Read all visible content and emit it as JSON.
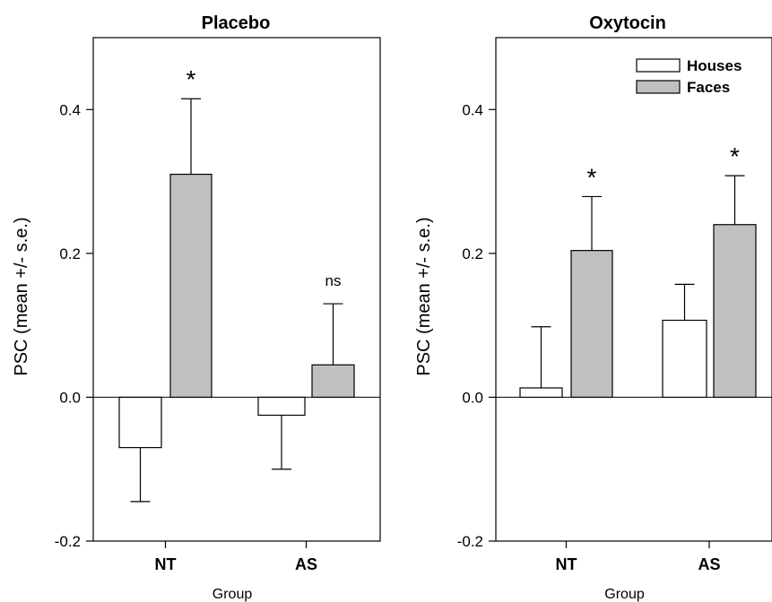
{
  "chart_data": [
    {
      "type": "bar",
      "title": "Placebo",
      "xlabel": "Group",
      "ylabel": "PSC (mean +/- s.e.)",
      "ylim": [
        -0.2,
        0.5
      ],
      "yticks": [
        "-0.2",
        "0.0",
        "0.2",
        "0.4"
      ],
      "categories": [
        "NT",
        "AS"
      ],
      "series": [
        {
          "name": "Houses",
          "values": [
            -0.07,
            -0.025
          ],
          "errors": [
            0.075,
            0.075
          ],
          "color": "#ffffff"
        },
        {
          "name": "Faces",
          "values": [
            0.31,
            0.045
          ],
          "errors": [
            0.105,
            0.085
          ],
          "color": "#c0c0c0"
        }
      ],
      "annotations": [
        {
          "category": "NT",
          "text": "*"
        },
        {
          "category": "AS",
          "text": "ns"
        }
      ],
      "legend": null
    },
    {
      "type": "bar",
      "title": "Oxytocin",
      "xlabel": "Group",
      "ylabel": "PSC (mean +/- s.e.)",
      "ylim": [
        -0.2,
        0.5
      ],
      "yticks": [
        "-0.2",
        "0.0",
        "0.2",
        "0.4"
      ],
      "categories": [
        "NT",
        "AS"
      ],
      "series": [
        {
          "name": "Houses",
          "values": [
            0.013,
            0.107
          ],
          "errors": [
            0.085,
            0.05
          ],
          "color": "#ffffff"
        },
        {
          "name": "Faces",
          "values": [
            0.204,
            0.24
          ],
          "errors": [
            0.075,
            0.068
          ],
          "color": "#c0c0c0"
        }
      ],
      "annotations": [
        {
          "category": "NT",
          "text": "*"
        },
        {
          "category": "AS",
          "text": "*"
        }
      ],
      "legend": "top-right"
    }
  ]
}
